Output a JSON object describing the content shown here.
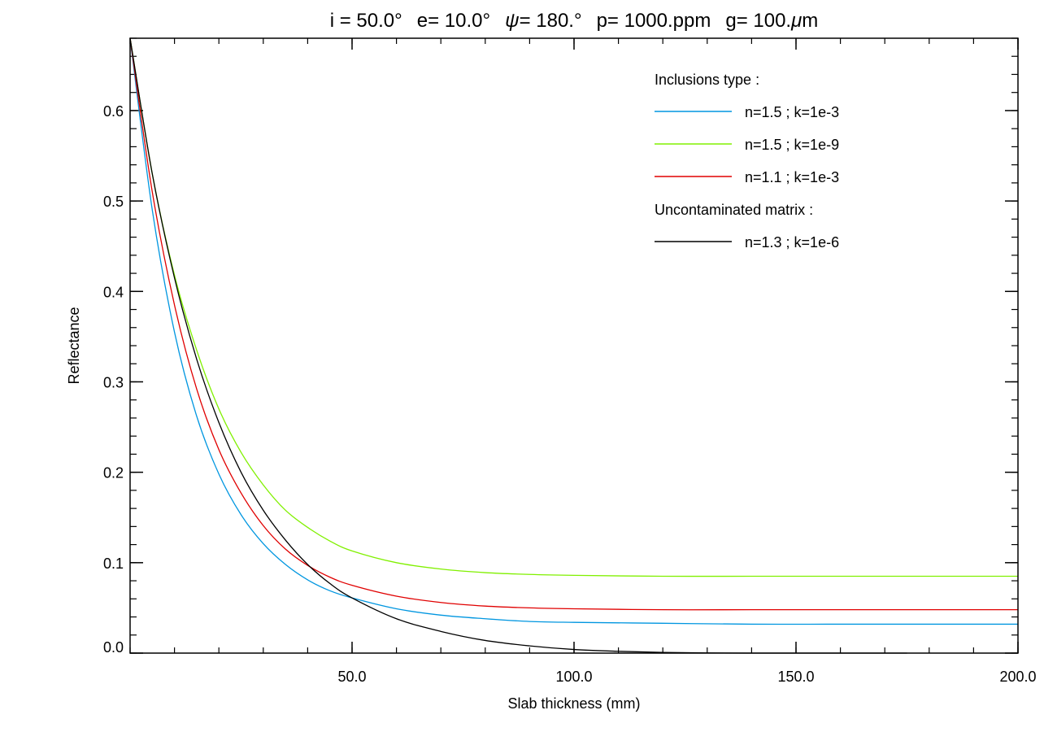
{
  "chart_data": {
    "type": "line",
    "title_parts": [
      {
        "label": "i = 50.0°"
      },
      {
        "label": "e= 10.0°"
      },
      {
        "symbol": "ψ",
        "label": "= 180.°"
      },
      {
        "label": "p=  1000.ppm"
      },
      {
        "label": "g= 100.",
        "symbol": "μ",
        "suffix": "m"
      }
    ],
    "xlabel": "Slab thickness (mm)",
    "ylabel": "Reflectance",
    "xlim": [
      0,
      200
    ],
    "ylim": [
      0,
      0.68
    ],
    "xticks": [
      {
        "value": 50,
        "label": "50.0"
      },
      {
        "value": 100,
        "label": "100.0"
      },
      {
        "value": 150,
        "label": "150.0"
      },
      {
        "value": 200,
        "label": "200.0"
      }
    ],
    "yticks": [
      {
        "value": 0.0,
        "label": "0.0"
      },
      {
        "value": 0.1,
        "label": "0.1"
      },
      {
        "value": 0.2,
        "label": "0.2"
      },
      {
        "value": 0.3,
        "label": "0.3"
      },
      {
        "value": 0.4,
        "label": "0.4"
      },
      {
        "value": 0.5,
        "label": "0.5"
      },
      {
        "value": 0.6,
        "label": "0.6"
      }
    ],
    "x_minor_step": 10,
    "y_minor_step": 0.02,
    "grid": false,
    "legend": {
      "position": "top-right",
      "groups": [
        {
          "heading": "Inclusions type :",
          "entries": [
            0,
            1,
            2
          ]
        },
        {
          "heading": "Uncontaminated matrix :",
          "entries": [
            3
          ]
        }
      ]
    },
    "series": [
      {
        "name": "n=1.5 ; k=1e-3",
        "color": "#0096e0",
        "x": [
          0,
          5,
          10,
          15,
          20,
          25,
          30,
          35,
          40,
          45,
          50,
          60,
          70,
          80,
          90,
          100,
          120,
          140,
          160,
          180,
          200
        ],
        "y": [
          0.68,
          0.49,
          0.355,
          0.262,
          0.198,
          0.153,
          0.121,
          0.098,
          0.081,
          0.069,
          0.061,
          0.049,
          0.042,
          0.038,
          0.035,
          0.034,
          0.033,
          0.032,
          0.032,
          0.032,
          0.032
        ]
      },
      {
        "name": "n=1.5 ; k=1e-9",
        "color": "#80f000",
        "x": [
          0,
          5,
          10,
          15,
          20,
          25,
          30,
          35,
          40,
          45,
          50,
          60,
          70,
          80,
          90,
          100,
          120,
          140,
          160,
          180,
          200
        ],
        "y": [
          0.68,
          0.53,
          0.418,
          0.335,
          0.27,
          0.222,
          0.186,
          0.158,
          0.139,
          0.124,
          0.113,
          0.1,
          0.093,
          0.089,
          0.087,
          0.086,
          0.085,
          0.085,
          0.085,
          0.085,
          0.085
        ]
      },
      {
        "name": "n=1.1 ; k=1e-3",
        "color": "#e00000",
        "x": [
          0,
          5,
          10,
          15,
          20,
          25,
          30,
          35,
          40,
          45,
          50,
          60,
          70,
          80,
          90,
          100,
          120,
          140,
          160,
          180,
          200
        ],
        "y": [
          0.68,
          0.51,
          0.385,
          0.292,
          0.225,
          0.177,
          0.141,
          0.115,
          0.097,
          0.084,
          0.075,
          0.063,
          0.056,
          0.052,
          0.05,
          0.049,
          0.048,
          0.048,
          0.048,
          0.048,
          0.048
        ]
      },
      {
        "name": "n=1.3 ; k=1e-6",
        "color": "#000000",
        "x": [
          0,
          5,
          10,
          15,
          20,
          25,
          30,
          35,
          40,
          45,
          50,
          60,
          70,
          80,
          90,
          100,
          110,
          120,
          130,
          140,
          150,
          160,
          170,
          175
        ],
        "y": [
          0.68,
          0.53,
          0.415,
          0.325,
          0.255,
          0.2,
          0.158,
          0.125,
          0.098,
          0.077,
          0.061,
          0.038,
          0.024,
          0.014,
          0.008,
          0.004,
          0.002,
          0.0008,
          0.0002,
          0.0,
          0.0,
          0.0,
          0.0,
          0.0
        ]
      }
    ]
  }
}
